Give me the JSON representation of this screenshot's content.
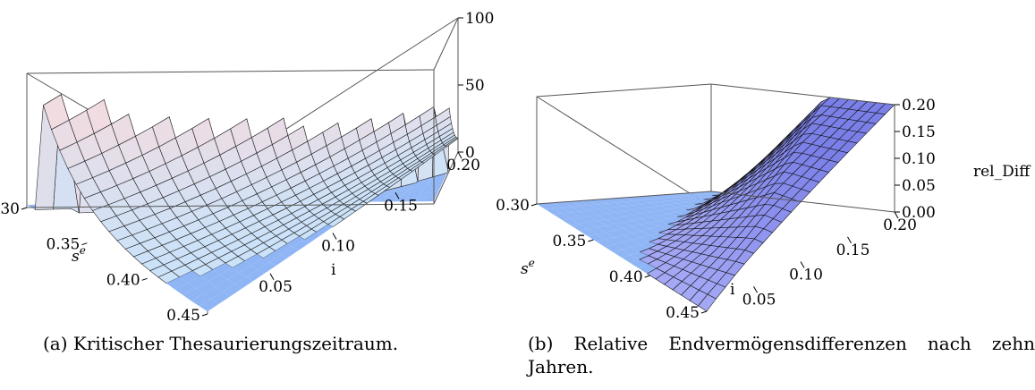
{
  "chart_data": [
    {
      "type": "surface3d",
      "id": "a",
      "caption": "(a) Kritischer Thesaurierungszeitraum.",
      "x_axis": {
        "label": "i",
        "range": [
          0.0,
          0.2
        ],
        "ticks": [
          "0.05",
          "0.10",
          "0.15",
          "0.20"
        ]
      },
      "y_axis": {
        "label_base": "s",
        "label_sup": "e",
        "range": [
          0.3,
          0.45
        ],
        "ticks": [
          "0.30",
          "0.35",
          "0.40",
          "0.45"
        ]
      },
      "z_axis": {
        "label": "",
        "range": [
          0,
          100
        ],
        "ticks": [
          "0",
          "50",
          "100"
        ]
      },
      "surface": "z = 0 (flat) where s^e is below a threshold that rises with i; above it z is steep near the threshold and decays toward ~0 for larger i",
      "colors": {
        "flat": "#8fb5f5",
        "high": "#fcdada",
        "low": "#c8e3fb",
        "mesh": "#111111"
      }
    },
    {
      "type": "surface3d",
      "id": "b",
      "caption": "(b) Relative Endvermögensdifferenzen nach zehn Jahren.",
      "x_axis": {
        "label": "i",
        "range": [
          0.0,
          0.2
        ],
        "ticks": [
          "0.05",
          "0.10",
          "0.15",
          "0.20"
        ]
      },
      "y_axis": {
        "label_base": "s",
        "label_sup": "e",
        "range": [
          0.3,
          0.45
        ],
        "ticks": [
          "0.30",
          "0.35",
          "0.40",
          "0.45"
        ]
      },
      "z_axis": {
        "label": "rel_Diff",
        "range": [
          0.0,
          0.2
        ],
        "ticks": [
          "0.00",
          "0.05",
          "0.10",
          "0.15",
          "0.20"
        ]
      },
      "surface": "z = 0 for most of the domain; a rising wedge near large s^e reaching about 0.20 at i = 0.20, s^e = 0.45",
      "colors": {
        "flat": "#8fb5f5",
        "wedge": "#7b80e8",
        "mesh": "#111111"
      }
    }
  ]
}
